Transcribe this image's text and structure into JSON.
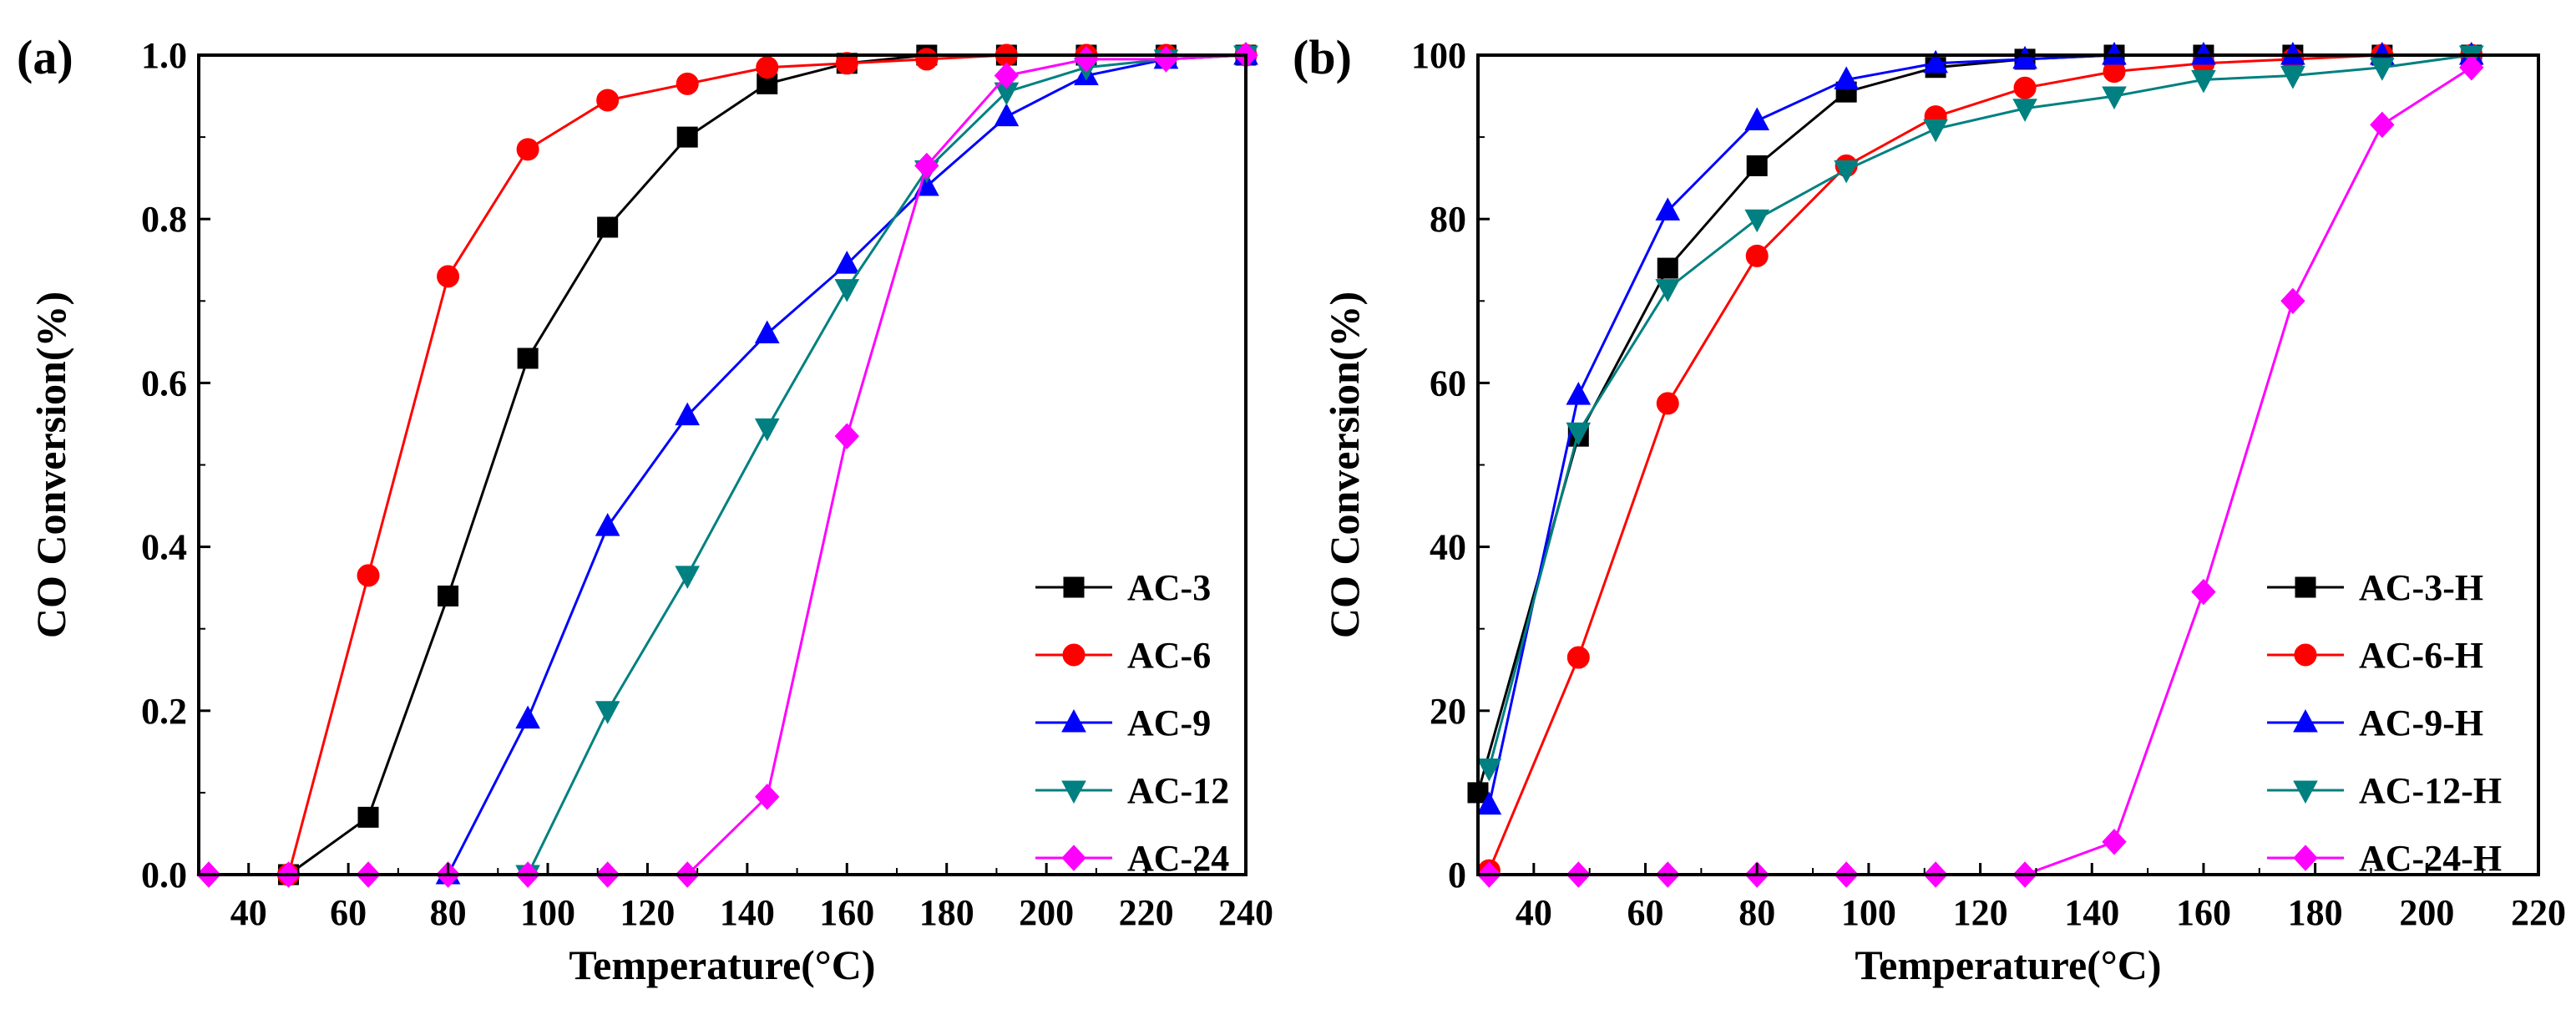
{
  "figure": {
    "colors": {
      "AC-3": "#000000",
      "AC-6": "#ff0000",
      "AC-9": "#0000ff",
      "AC-12": "#008080",
      "AC-24": "#ff00ff"
    }
  },
  "chart_data": [
    {
      "type": "line",
      "panel_label": "(a)",
      "xlabel": "Temperature(°C)",
      "ylabel": "CO Conversion(%)",
      "xlim": [
        30,
        240
      ],
      "ylim": [
        0,
        1.0
      ],
      "xticks": [
        40,
        60,
        80,
        100,
        120,
        140,
        160,
        180,
        200,
        220,
        240
      ],
      "yticks": [
        0.0,
        0.2,
        0.4,
        0.6,
        0.8,
        1.0
      ],
      "xtick_labels": [
        "40",
        "60",
        "80",
        "100",
        "120",
        "140",
        "160",
        "180",
        "200",
        "220",
        "240"
      ],
      "ytick_labels": [
        "0.0",
        "0.2",
        "0.4",
        "0.6",
        "0.8",
        "1.0"
      ],
      "grid": false,
      "legend_position": "lower-right",
      "series": [
        {
          "name": "AC-3",
          "marker": "square",
          "color": "#000000",
          "x": [
            48,
            64,
            80,
            96,
            112,
            128,
            144,
            160,
            176,
            192,
            208,
            224,
            240
          ],
          "y": [
            0.0,
            0.07,
            0.34,
            0.63,
            0.79,
            0.9,
            0.965,
            0.99,
            1.0,
            1.0,
            1.0,
            1.0,
            1.0
          ]
        },
        {
          "name": "AC-6",
          "marker": "circle",
          "color": "#ff0000",
          "x": [
            48,
            64,
            80,
            96,
            112,
            128,
            144,
            160,
            176,
            192,
            208,
            224,
            240
          ],
          "y": [
            0.0,
            0.365,
            0.73,
            0.885,
            0.945,
            0.965,
            0.985,
            0.99,
            0.995,
            1.0,
            1.0,
            1.0,
            1.0
          ]
        },
        {
          "name": "AC-9",
          "marker": "triangle-up",
          "color": "#0000ff",
          "x": [
            80,
            96,
            112,
            128,
            144,
            160,
            176,
            192,
            208,
            224,
            240
          ],
          "y": [
            0.0,
            0.19,
            0.425,
            0.56,
            0.66,
            0.745,
            0.84,
            0.925,
            0.975,
            0.995,
            1.0
          ]
        },
        {
          "name": "AC-12",
          "marker": "triangle-down",
          "color": "#008080",
          "x": [
            96,
            112,
            128,
            144,
            160,
            176,
            192,
            208,
            224,
            240
          ],
          "y": [
            0.0,
            0.2,
            0.365,
            0.545,
            0.715,
            0.86,
            0.955,
            0.985,
            0.995,
            1.0
          ]
        },
        {
          "name": "AC-24",
          "marker": "diamond",
          "color": "#ff00ff",
          "x": [
            32,
            48,
            64,
            80,
            96,
            112,
            128,
            144,
            160,
            176,
            192,
            208,
            224,
            240
          ],
          "y": [
            0.0,
            0.0,
            0.0,
            0.0,
            0.0,
            0.0,
            0.0,
            0.095,
            0.535,
            0.865,
            0.975,
            0.995,
            0.995,
            1.0
          ]
        }
      ]
    },
    {
      "type": "line",
      "panel_label": "(b)",
      "xlabel": "Temperature(°C)",
      "ylabel": "CO Conversion(%)",
      "xlim": [
        30,
        220
      ],
      "ylim": [
        0,
        100
      ],
      "xticks": [
        40,
        60,
        80,
        100,
        120,
        140,
        160,
        180,
        200,
        220
      ],
      "yticks": [
        0,
        20,
        40,
        60,
        80,
        100
      ],
      "xtick_labels": [
        "40",
        "60",
        "80",
        "100",
        "120",
        "140",
        "160",
        "180",
        "200",
        "220"
      ],
      "ytick_labels": [
        "0",
        "20",
        "40",
        "60",
        "80",
        "100"
      ],
      "grid": false,
      "legend_position": "lower-right",
      "series": [
        {
          "name": "AC-3-H",
          "marker": "square",
          "color": "#000000",
          "x": [
            30,
            48,
            64,
            80,
            96,
            112,
            128,
            144,
            160,
            176,
            192,
            208
          ],
          "y": [
            10,
            53.5,
            74,
            86.5,
            95.5,
            98.5,
            99.5,
            100,
            100,
            100,
            100,
            100
          ]
        },
        {
          "name": "AC-6-H",
          "marker": "circle",
          "color": "#ff0000",
          "x": [
            32,
            48,
            64,
            80,
            96,
            112,
            128,
            144,
            160,
            176,
            192,
            208
          ],
          "y": [
            0.5,
            26.5,
            57.5,
            75.5,
            86.5,
            92.5,
            96,
            98,
            99,
            99.5,
            100,
            100
          ]
        },
        {
          "name": "AC-9-H",
          "marker": "triangle-up",
          "color": "#0000ff",
          "x": [
            32,
            48,
            64,
            80,
            96,
            112,
            128,
            144,
            160,
            176,
            192,
            208
          ],
          "y": [
            8.5,
            58.5,
            81,
            92,
            97,
            99,
            99.5,
            100,
            100,
            100,
            100,
            100
          ]
        },
        {
          "name": "AC-12-H",
          "marker": "triangle-down",
          "color": "#008080",
          "x": [
            32,
            48,
            64,
            80,
            96,
            112,
            128,
            144,
            160,
            176,
            192,
            208
          ],
          "y": [
            13,
            54,
            71.5,
            80,
            86,
            91,
            93.5,
            95,
            97,
            97.5,
            98.5,
            100
          ]
        },
        {
          "name": "AC-24-H",
          "marker": "diamond",
          "color": "#ff00ff",
          "x": [
            32,
            48,
            64,
            80,
            96,
            112,
            128,
            144,
            160,
            176,
            192,
            208
          ],
          "y": [
            0,
            0,
            0,
            0,
            0,
            0,
            0,
            4,
            34.5,
            70,
            91.5,
            98.5
          ]
        }
      ]
    }
  ]
}
